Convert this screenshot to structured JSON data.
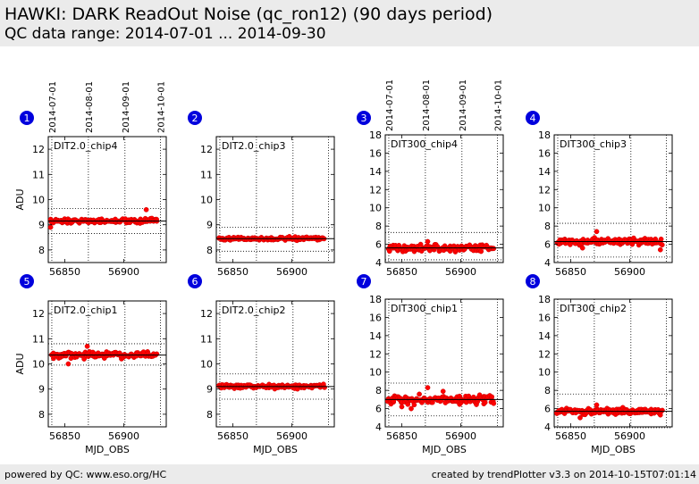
{
  "header": {
    "title": "HAWKI: DARK ReadOut Noise (qc_ron12) (90 days period)",
    "subtitle": "QC data range: 2014-07-01 ... 2014-09-30"
  },
  "footer": {
    "left": "powered by QC: www.eso.org/HC",
    "right": "created by trendPlotter v3.3 on 2014-10-15T07:01:14"
  },
  "colors": {
    "points": "#ff0000",
    "badge": "#0000dd",
    "header_bg": "#ebebeb"
  },
  "top_date_ticks": {
    "labels": [
      "2014-07-01",
      "2014-08-01",
      "2014-09-01",
      "2014-10-01"
    ],
    "mjd": [
      56839,
      56870,
      56901,
      56931
    ]
  },
  "chart_data": [
    {
      "id": "1",
      "type": "scatter",
      "label": "DIT2.0_chip4",
      "ylabel": "ADU",
      "xlabel": "",
      "xlim": [
        56836,
        56936
      ],
      "ylim": [
        7.5,
        12.5
      ],
      "yticks": [
        8,
        9,
        10,
        11,
        12
      ],
      "xticks": [
        56850,
        56900
      ],
      "center": 9.15,
      "lower": 8.65,
      "upper": 9.65,
      "scatter": 0.08,
      "outliers": [
        [
          56919,
          9.6
        ],
        [
          56838,
          8.9
        ]
      ]
    },
    {
      "id": "2",
      "type": "scatter",
      "label": "DIT2.0_chip3",
      "ylabel": "",
      "xlabel": "",
      "xlim": [
        56836,
        56936
      ],
      "ylim": [
        7.5,
        12.5
      ],
      "yticks": [
        8,
        9,
        10,
        11,
        12
      ],
      "xticks": [
        56850,
        56900
      ],
      "center": 8.45,
      "lower": 7.95,
      "upper": 8.9,
      "scatter": 0.06,
      "outliers": []
    },
    {
      "id": "3",
      "type": "scatter",
      "label": "DIT300_chip4",
      "ylabel": "",
      "xlabel": "",
      "xlim": [
        56836,
        56936
      ],
      "ylim": [
        4,
        18
      ],
      "yticks": [
        4,
        6,
        8,
        10,
        12,
        14,
        16,
        18
      ],
      "xticks": [
        56850,
        56900
      ],
      "center": 5.6,
      "lower": 4.3,
      "upper": 7.3,
      "scatter": 0.35,
      "outliers": [
        [
          56872,
          6.3
        ],
        [
          56866,
          6.0
        ]
      ]
    },
    {
      "id": "4",
      "type": "scatter",
      "label": "DIT300_chip3",
      "ylabel": "",
      "xlabel": "",
      "xlim": [
        56836,
        56936
      ],
      "ylim": [
        4,
        18
      ],
      "yticks": [
        4,
        6,
        8,
        10,
        12,
        14,
        16,
        18
      ],
      "xticks": [
        56850,
        56900
      ],
      "center": 6.3,
      "lower": 4.6,
      "upper": 8.3,
      "scatter": 0.35,
      "outliers": [
        [
          56872,
          7.4
        ],
        [
          56860,
          5.6
        ],
        [
          56926,
          5.4
        ]
      ]
    },
    {
      "id": "5",
      "type": "scatter",
      "label": "DIT2.0_chip1",
      "ylabel": "ADU",
      "xlabel": "MJD_OBS",
      "xlim": [
        56836,
        56936
      ],
      "ylim": [
        7.5,
        12.5
      ],
      "yticks": [
        8,
        9,
        10,
        11,
        12
      ],
      "xticks": [
        56850,
        56900
      ],
      "center": 10.35,
      "lower": 9.95,
      "upper": 10.8,
      "scatter": 0.12,
      "outliers": [
        [
          56853,
          10.0
        ],
        [
          56869,
          10.7
        ]
      ]
    },
    {
      "id": "6",
      "type": "scatter",
      "label": "DIT2.0_chip2",
      "ylabel": "",
      "xlabel": "MJD_OBS",
      "xlim": [
        56836,
        56936
      ],
      "ylim": [
        7.5,
        12.5
      ],
      "yticks": [
        8,
        9,
        10,
        11,
        12
      ],
      "xticks": [
        56850,
        56900
      ],
      "center": 9.1,
      "lower": 8.6,
      "upper": 9.6,
      "scatter": 0.07,
      "outliers": []
    },
    {
      "id": "7",
      "type": "scatter",
      "label": "DIT300_chip1",
      "ylabel": "",
      "xlabel": "MJD_OBS",
      "xlim": [
        56836,
        56936
      ],
      "ylim": [
        4,
        18
      ],
      "yticks": [
        4,
        6,
        8,
        10,
        12,
        14,
        16,
        18
      ],
      "xticks": [
        56850,
        56900
      ],
      "center": 7.0,
      "lower": 5.2,
      "upper": 8.8,
      "scatter": 0.45,
      "outliers": [
        [
          56872,
          8.3
        ],
        [
          56850,
          6.2
        ],
        [
          56858,
          6.0
        ],
        [
          56885,
          7.9
        ]
      ]
    },
    {
      "id": "8",
      "type": "scatter",
      "label": "DIT300_chip2",
      "ylabel": "",
      "xlabel": "MJD_OBS",
      "xlim": [
        56836,
        56936
      ],
      "ylim": [
        4,
        18
      ],
      "yticks": [
        4,
        6,
        8,
        10,
        12,
        14,
        16,
        18
      ],
      "xticks": [
        56850,
        56900
      ],
      "center": 5.7,
      "lower": 3.9,
      "upper": 7.6,
      "scatter": 0.3,
      "outliers": [
        [
          56872,
          6.4
        ],
        [
          56858,
          5.0
        ],
        [
          56926,
          5.3
        ]
      ]
    }
  ]
}
